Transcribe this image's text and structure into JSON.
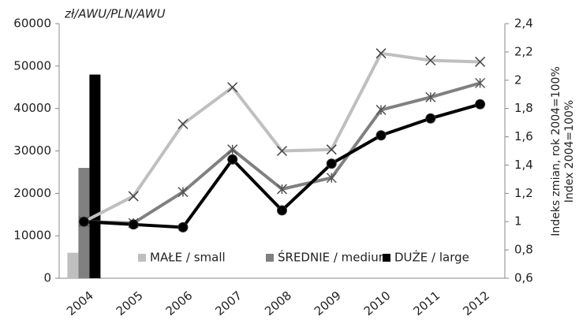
{
  "chart_data": {
    "type": "combo",
    "y_label": "zł/AWU/PLN/AWU",
    "y2_labels": [
      "Indeks zmian, rok 2004=100%",
      "Index 2004=100%"
    ],
    "categories": [
      "2004",
      "2005",
      "2006",
      "2007",
      "2008",
      "2009",
      "2010",
      "2011",
      "2012"
    ],
    "ylim": [
      0,
      60000
    ],
    "yticks": [
      0,
      10000,
      20000,
      30000,
      40000,
      50000,
      60000
    ],
    "y2lim": [
      0.6,
      2.4
    ],
    "y2ticks": [
      {
        "value": 0.6,
        "label": "0,6"
      },
      {
        "value": 0.8,
        "label": "0,8"
      },
      1,
      {
        "value": 1.2,
        "label": "1,2"
      },
      {
        "value": 1.4,
        "label": "1,4"
      },
      {
        "value": 1.6,
        "label": "1,6"
      },
      {
        "value": 1.8,
        "label": "1,8"
      },
      2,
      {
        "value": 2.2,
        "label": "2,2"
      },
      {
        "value": 2.4,
        "label": "2,4"
      }
    ],
    "grid": false,
    "legend": "bottom-right",
    "series": [
      {
        "name": "MAŁE / small",
        "color": "#bfbfbf",
        "marker": "x",
        "axis": "y2",
        "bar_values": [
          6000,
          null,
          null,
          null,
          null,
          null,
          null,
          null,
          null
        ],
        "values": [
          1.0,
          1.18,
          1.69,
          1.95,
          1.5,
          1.51,
          2.19,
          2.14,
          2.13
        ]
      },
      {
        "name": "ŚREDNIE / medium",
        "color": "#808080",
        "marker": "star",
        "axis": "y2",
        "bar_values": [
          26000,
          null,
          null,
          null,
          null,
          null,
          null,
          null,
          null
        ],
        "values": [
          1.0,
          0.99,
          1.21,
          1.51,
          1.23,
          1.31,
          1.79,
          1.88,
          1.98
        ]
      },
      {
        "name": "DUŻE / large",
        "color": "#000000",
        "marker": "circle",
        "axis": "y2",
        "bar_values": [
          48000,
          null,
          null,
          null,
          null,
          null,
          null,
          null,
          null
        ],
        "values": [
          1.0,
          0.98,
          0.96,
          1.44,
          1.08,
          1.41,
          1.61,
          1.73,
          1.83
        ]
      }
    ]
  }
}
